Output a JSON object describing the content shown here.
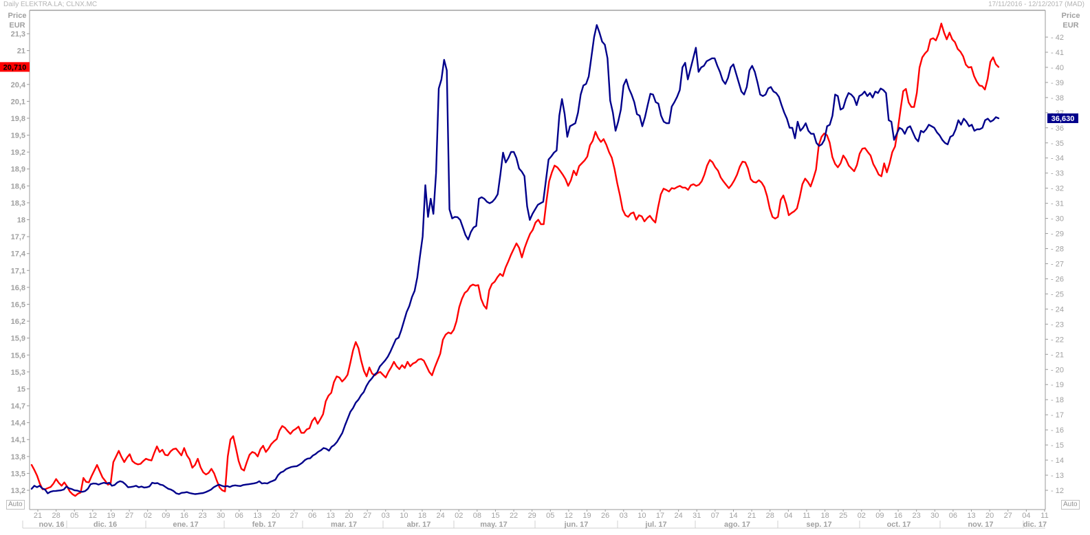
{
  "header": {
    "title": "Daily ELEKTRA.LA; CLNX.MC",
    "date_range": "17/11/2016 - 12/12/2017 (MAD)"
  },
  "left_axis": {
    "title": "Price",
    "unit": "EUR"
  },
  "right_axis": {
    "title": "Price",
    "unit": "EUR"
  },
  "auto_left": "Auto",
  "auto_right": "Auto",
  "colors": {
    "red_series": "#ff0000",
    "blue_series": "#00008b",
    "axis": "#888888",
    "text": "#a0a0a0"
  },
  "chart_data": {
    "type": "line",
    "series": [
      {
        "name": "ELEKTRA.LA",
        "axis": "left",
        "color": "#ff0000",
        "last_value": "20,710",
        "values": [
          13.65,
          13.56,
          13.46,
          13.32,
          13.22,
          13.22,
          13.24,
          13.26,
          13.32,
          13.4,
          13.33,
          13.28,
          13.34,
          13.27,
          13.18,
          13.13,
          13.1,
          13.14,
          13.16,
          13.42,
          13.35,
          13.34,
          13.45,
          13.55,
          13.65,
          13.54,
          13.43,
          13.37,
          13.3,
          13.32,
          13.7,
          13.8,
          13.9,
          13.79,
          13.7,
          13.78,
          13.84,
          13.72,
          13.68,
          13.66,
          13.67,
          13.72,
          13.76,
          13.74,
          13.73,
          13.86,
          13.98,
          13.88,
          13.92,
          13.83,
          13.82,
          13.89,
          13.93,
          13.94,
          13.88,
          13.82,
          13.95,
          13.82,
          13.75,
          13.6,
          13.65,
          13.76,
          13.61,
          13.52,
          13.48,
          13.51,
          13.58,
          13.5,
          13.37,
          13.25,
          13.2,
          13.18,
          13.8,
          14.1,
          14.16,
          13.95,
          13.72,
          13.58,
          13.55,
          13.7,
          13.83,
          13.88,
          13.86,
          13.8,
          13.93,
          13.99,
          13.88,
          13.94,
          14.02,
          14.07,
          14.11,
          14.26,
          14.34,
          14.31,
          14.25,
          14.2,
          14.26,
          14.29,
          14.33,
          14.22,
          14.22,
          14.28,
          14.3,
          14.43,
          14.49,
          14.38,
          14.46,
          14.55,
          14.78,
          14.88,
          14.93,
          15.12,
          15.22,
          15.2,
          15.13,
          15.18,
          15.25,
          15.46,
          15.68,
          15.83,
          15.72,
          15.5,
          15.32,
          15.22,
          15.38,
          15.27,
          15.24,
          15.28,
          15.3,
          15.25,
          15.2,
          15.3,
          15.38,
          15.48,
          15.4,
          15.35,
          15.42,
          15.37,
          15.48,
          15.4,
          15.45,
          15.47,
          15.52,
          15.53,
          15.5,
          15.4,
          15.3,
          15.24,
          15.38,
          15.5,
          15.62,
          15.87,
          15.96,
          16.0,
          15.98,
          16.05,
          16.2,
          16.45,
          16.6,
          16.7,
          16.74,
          16.82,
          16.85,
          16.83,
          16.84,
          16.6,
          16.48,
          16.42,
          16.75,
          16.86,
          16.9,
          16.98,
          17.04,
          17.0,
          17.15,
          17.26,
          17.38,
          17.48,
          17.58,
          17.5,
          17.33,
          17.5,
          17.63,
          17.75,
          17.82,
          17.95,
          18.0,
          17.92,
          17.92,
          18.32,
          18.68,
          18.84,
          18.96,
          18.93,
          18.87,
          18.8,
          18.72,
          18.6,
          18.7,
          18.87,
          18.79,
          18.95,
          19.0,
          19.05,
          19.12,
          19.32,
          19.4,
          19.56,
          19.45,
          19.38,
          19.43,
          19.33,
          19.2,
          19.1,
          18.9,
          18.65,
          18.43,
          18.18,
          18.08,
          18.05,
          18.11,
          18.13,
          18.0,
          18.08,
          18.06,
          17.97,
          18.03,
          18.07,
          18.0,
          17.95,
          18.22,
          18.45,
          18.55,
          18.53,
          18.5,
          18.56,
          18.55,
          18.58,
          18.6,
          18.57,
          18.57,
          18.53,
          18.61,
          18.63,
          18.6,
          18.62,
          18.68,
          18.8,
          18.96,
          19.06,
          19.02,
          18.93,
          18.87,
          18.75,
          18.68,
          18.62,
          18.56,
          18.62,
          18.7,
          18.8,
          18.94,
          19.03,
          19.02,
          18.91,
          18.72,
          18.67,
          18.66,
          18.7,
          18.66,
          18.58,
          18.42,
          18.2,
          18.05,
          18.02,
          18.05,
          18.35,
          18.43,
          18.28,
          18.08,
          18.12,
          18.15,
          18.2,
          18.4,
          18.63,
          18.73,
          18.67,
          18.59,
          18.73,
          18.89,
          19.32,
          19.47,
          19.53,
          19.5,
          19.37,
          19.11,
          18.99,
          18.93,
          19.0,
          19.14,
          19.07,
          18.96,
          18.91,
          18.86,
          18.97,
          19.17,
          19.26,
          19.27,
          19.2,
          19.14,
          18.99,
          18.9,
          18.8,
          18.77,
          19.0,
          18.84,
          19.0,
          19.2,
          19.3,
          19.6,
          19.95,
          20.28,
          20.32,
          20.08,
          20.0,
          20.0,
          20.25,
          20.7,
          20.88,
          20.95,
          21.0,
          21.2,
          21.22,
          21.18,
          21.3,
          21.48,
          21.32,
          21.2,
          21.32,
          21.2,
          21.15,
          21.03,
          20.98,
          20.9,
          20.75,
          20.7,
          20.71,
          20.55,
          20.45,
          20.38,
          20.37,
          20.31,
          20.5,
          20.8,
          20.88,
          20.76,
          20.71
        ]
      },
      {
        "name": "CLNX.MC",
        "axis": "right",
        "color": "#00008b",
        "last_value": "36,630",
        "values": [
          12.1,
          12.3,
          12.21,
          12.3,
          12.12,
          12.05,
          11.8,
          11.9,
          11.95,
          11.96,
          11.98,
          12.0,
          12.05,
          12.25,
          12.13,
          12.08,
          12.0,
          11.98,
          11.92,
          11.9,
          11.95,
          12.1,
          12.4,
          12.45,
          12.44,
          12.38,
          12.45,
          12.5,
          12.45,
          12.5,
          12.3,
          12.35,
          12.52,
          12.6,
          12.55,
          12.4,
          12.2,
          12.22,
          12.25,
          12.3,
          12.2,
          12.25,
          12.18,
          12.2,
          12.26,
          12.5,
          12.46,
          12.48,
          12.38,
          12.34,
          12.22,
          12.1,
          12.05,
          11.95,
          11.8,
          11.75,
          11.83,
          11.85,
          11.88,
          11.82,
          11.78,
          11.75,
          11.77,
          11.8,
          11.82,
          11.88,
          11.96,
          12.05,
          12.2,
          12.3,
          12.38,
          12.3,
          12.25,
          12.28,
          12.22,
          12.3,
          12.33,
          12.3,
          12.28,
          12.35,
          12.38,
          12.4,
          12.43,
          12.46,
          12.5,
          12.6,
          12.45,
          12.48,
          12.45,
          12.55,
          12.62,
          12.7,
          13.0,
          13.18,
          13.25,
          13.4,
          13.48,
          13.55,
          13.58,
          13.6,
          13.7,
          13.82,
          14.0,
          14.1,
          14.12,
          14.3,
          14.4,
          14.55,
          14.65,
          14.8,
          14.75,
          14.62,
          14.88,
          15.0,
          15.2,
          15.5,
          15.8,
          16.3,
          16.75,
          17.2,
          17.45,
          17.8,
          18.0,
          18.3,
          18.5,
          18.9,
          19.2,
          19.4,
          19.65,
          19.8,
          20.2,
          20.4,
          20.6,
          20.85,
          21.2,
          21.6,
          22.0,
          22.1,
          22.6,
          23.2,
          23.8,
          24.2,
          24.8,
          25.2,
          26.1,
          27.5,
          28.8,
          32.2,
          30.1,
          31.3,
          30.3,
          33.0,
          38.6,
          39.2,
          40.5,
          39.8,
          30.6,
          30.0,
          30.1,
          30.08,
          29.9,
          29.4,
          28.9,
          28.6,
          29.1,
          29.4,
          29.5,
          31.3,
          31.4,
          31.3,
          31.1,
          31.0,
          31.1,
          31.3,
          31.6,
          32.9,
          34.35,
          33.7,
          34.0,
          34.4,
          34.4,
          34.0,
          33.3,
          33.1,
          32.8,
          30.8,
          29.9,
          30.3,
          30.6,
          30.9,
          31.0,
          31.1,
          32.5,
          33.9,
          34.1,
          34.35,
          34.5,
          36.8,
          37.9,
          36.9,
          35.4,
          36.1,
          36.2,
          36.3,
          37.0,
          38.2,
          38.8,
          38.9,
          39.4,
          40.7,
          42.0,
          42.8,
          42.3,
          41.7,
          41.5,
          40.6,
          37.8,
          37.0,
          35.8,
          36.4,
          37.2,
          38.8,
          39.2,
          38.6,
          38.2,
          37.7,
          36.9,
          36.8,
          36.1,
          36.7,
          37.5,
          38.25,
          38.2,
          37.7,
          37.6,
          36.8,
          36.4,
          36.3,
          36.3,
          37.4,
          37.7,
          38.05,
          38.5,
          40.0,
          40.3,
          39.2,
          39.9,
          40.6,
          41.3,
          39.7,
          40.0,
          40.1,
          40.4,
          40.5,
          40.6,
          40.6,
          40.1,
          39.7,
          39.15,
          38.9,
          39.3,
          40.0,
          40.2,
          39.6,
          39.0,
          38.4,
          38.2,
          38.7,
          39.8,
          40.1,
          39.7,
          39.0,
          38.2,
          38.1,
          38.2,
          38.6,
          38.7,
          38.4,
          38.3,
          38.05,
          37.5,
          37.0,
          36.6,
          36.0,
          36.0,
          35.3,
          36.4,
          35.8,
          36.0,
          36.3,
          35.8,
          35.6,
          35.6,
          35.0,
          34.8,
          34.9,
          35.2,
          36.1,
          36.2,
          36.8,
          38.2,
          38.1,
          37.2,
          37.3,
          37.9,
          38.3,
          38.2,
          38.0,
          37.5,
          38.1,
          38.2,
          38.4,
          38.1,
          38.3,
          38.0,
          38.4,
          38.3,
          38.6,
          38.5,
          38.3,
          36.5,
          36.4,
          35.2,
          35.6,
          36.0,
          35.9,
          35.6,
          36.0,
          36.1,
          35.7,
          35.3,
          35.1,
          35.8,
          35.7,
          35.9,
          36.2,
          36.1,
          36.0,
          35.7,
          35.5,
          35.2,
          35.0,
          34.9,
          35.4,
          35.5,
          35.9,
          36.5,
          36.2,
          36.6,
          36.4,
          36.1,
          36.2,
          35.8,
          35.9,
          35.9,
          36.0,
          36.5,
          36.6,
          36.4,
          36.5,
          36.7,
          36.63
        ]
      }
    ],
    "left_axis_ticks": [
      "21,3",
      "21",
      "20,4",
      "20,1",
      "19,8",
      "19,5",
      "19,2",
      "18,9",
      "18,6",
      "18,3",
      "18",
      "17,7",
      "17,4",
      "17,1",
      "16,8",
      "16,5",
      "16,2",
      "15,9",
      "15,6",
      "15,3",
      "15",
      "14,7",
      "14,4",
      "14,1",
      "13,8",
      "13,5",
      "13,2"
    ],
    "left_axis_values": [
      21.3,
      21,
      20.4,
      20.1,
      19.8,
      19.5,
      19.2,
      18.9,
      18.6,
      18.3,
      18,
      17.7,
      17.4,
      17.1,
      16.8,
      16.5,
      16.2,
      15.9,
      15.6,
      15.3,
      15,
      14.7,
      14.4,
      14.1,
      13.8,
      13.5,
      13.2
    ],
    "left_ylim": [
      13.0,
      21.7
    ],
    "right_axis_ticks": [
      "42",
      "41",
      "40",
      "39",
      "38",
      "37",
      "36",
      "35",
      "34",
      "33",
      "32",
      "31",
      "30",
      "29",
      "28",
      "27",
      "26",
      "25",
      "24",
      "23",
      "22",
      "21",
      "20",
      "19",
      "18",
      "17",
      "16",
      "15",
      "14",
      "13",
      "12"
    ],
    "right_ylim": [
      11.0,
      43.5
    ],
    "x_ticks": [
      "21",
      "28",
      "05",
      "12",
      "19",
      "27",
      "02",
      "09",
      "16",
      "23",
      "30",
      "06",
      "13",
      "20",
      "27",
      "06",
      "13",
      "20",
      "27",
      "03",
      "10",
      "18",
      "24",
      "02",
      "08",
      "15",
      "22",
      "29",
      "05",
      "12",
      "19",
      "26",
      "03",
      "10",
      "17",
      "24",
      "31",
      "07",
      "14",
      "21",
      "28",
      "04",
      "11",
      "18",
      "25",
      "02",
      "09",
      "16",
      "23",
      "30",
      "06",
      "13",
      "20",
      "27",
      "04",
      "11"
    ],
    "month_labels": [
      "nov. 16",
      "dic. 16",
      "ene. 17",
      "feb. 17",
      "mar. 17",
      "abr. 17",
      "may. 17",
      "jun. 17",
      "jul. 17",
      "ago. 17",
      "sep. 17",
      "oct. 17",
      "nov. 17",
      "dic. 17"
    ],
    "grid": false
  }
}
